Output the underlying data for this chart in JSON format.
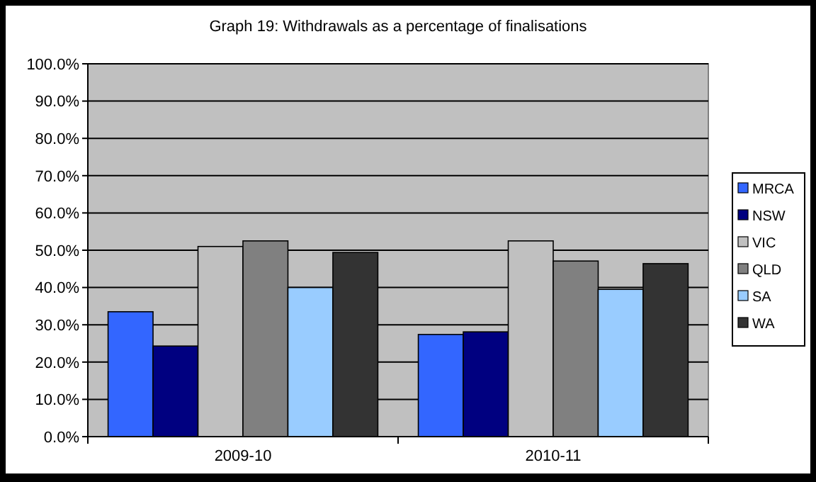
{
  "chart_data": {
    "type": "bar",
    "title": "Graph 19: Withdrawals as a percentage of finalisations",
    "categories": [
      "2009-10",
      "2010-11"
    ],
    "series": [
      {
        "name": "MRCA",
        "color": "#3366ff",
        "values": [
          33.5,
          27.4
        ]
      },
      {
        "name": "NSW",
        "color": "#000080",
        "values": [
          24.3,
          28.1
        ]
      },
      {
        "name": "VIC",
        "color": "#c0c0c0",
        "values": [
          51,
          52.5
        ]
      },
      {
        "name": "QLD",
        "color": "#808080",
        "values": [
          52.5,
          47.1
        ]
      },
      {
        "name": "SA",
        "color": "#99ccff",
        "values": [
          40,
          39.5
        ]
      },
      {
        "name": "WA",
        "color": "#333333",
        "values": [
          49.4,
          46.4
        ]
      }
    ],
    "ylim": [
      0,
      100
    ],
    "yticks": [
      {
        "value": 0,
        "label": "0.0%"
      },
      {
        "value": 10,
        "label": "10.0%"
      },
      {
        "value": 20,
        "label": "20.0%"
      },
      {
        "value": 30,
        "label": "30.0%"
      },
      {
        "value": 40,
        "label": "40.0%"
      },
      {
        "value": 50,
        "label": "50.0%"
      },
      {
        "value": 60,
        "label": "60.0%"
      },
      {
        "value": 70,
        "label": "70.0%"
      },
      {
        "value": 80,
        "label": "80.0%"
      },
      {
        "value": 90,
        "label": "90.0%"
      },
      {
        "value": 100,
        "label": "100.0%"
      }
    ],
    "grid": "y",
    "legend": "right"
  }
}
